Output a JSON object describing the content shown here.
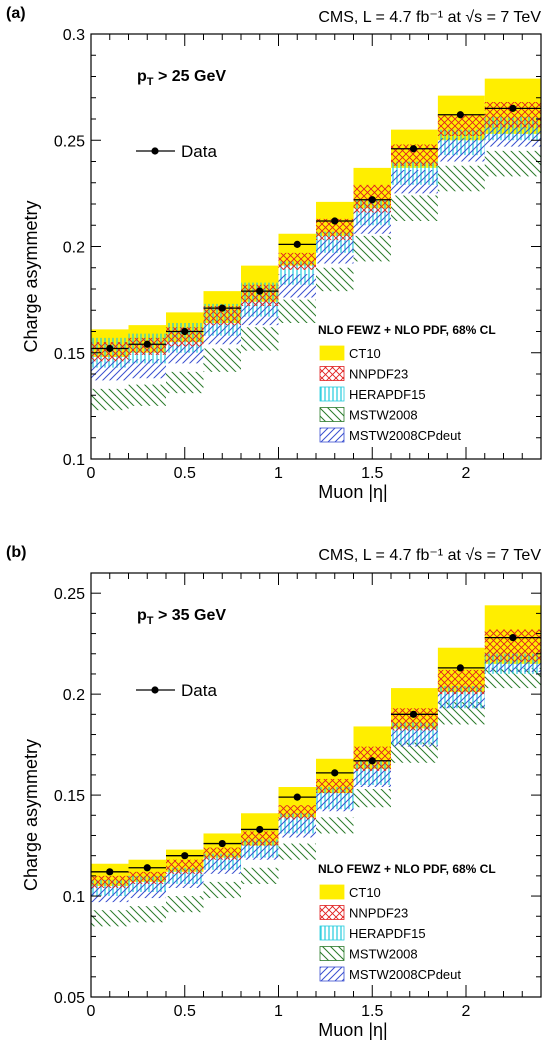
{
  "colors": {
    "ct10": "#ffee00",
    "nnpdf23": "#e02020",
    "herapdf15": "#22ccdd",
    "mstw2008": "#2a7a2a",
    "mstw2008cpdeut": "#3a4fd0",
    "data": "#000000"
  },
  "chart_data": [
    {
      "type": "bar",
      "panel_label": "(a)",
      "header": "CMS,  L = 4.7 fb⁻¹ at √s = 7 TeV",
      "selection": "p_T > 25 GeV",
      "xlabel": "Muon |η|",
      "ylabel": "Charge asymmetry",
      "xlim": [
        0,
        2.4
      ],
      "ylim": [
        0.1,
        0.3
      ],
      "x_ticks": [
        "0",
        "0.5",
        "1",
        "1.5",
        "2"
      ],
      "y_ticks": [
        "0.1",
        "0.15",
        "0.2",
        "0.25",
        "0.3"
      ],
      "legend_title": "NLO FEWZ + NLO PDF, 68% CL",
      "legend_placement": "bottom-right",
      "bin_edges": [
        0,
        0.2,
        0.4,
        0.6,
        0.8,
        1.0,
        1.2,
        1.4,
        1.6,
        1.85,
        2.1,
        2.4
      ],
      "data": {
        "name": "Data",
        "x": [
          0.1,
          0.3,
          0.5,
          0.7,
          0.9,
          1.1,
          1.3,
          1.5,
          1.72,
          1.97,
          2.25
        ],
        "y": [
          0.152,
          0.154,
          0.16,
          0.171,
          0.179,
          0.201,
          0.212,
          0.222,
          0.246,
          0.262,
          0.265
        ]
      },
      "series": [
        {
          "name": "CT10",
          "key": "ct10",
          "pattern": "solid",
          "low": [
            0.148,
            0.15,
            0.155,
            0.164,
            0.174,
            0.191,
            0.205,
            0.218,
            0.237,
            0.25,
            0.253
          ],
          "high": [
            0.161,
            0.163,
            0.169,
            0.179,
            0.191,
            0.206,
            0.221,
            0.237,
            0.255,
            0.271,
            0.279
          ]
        },
        {
          "name": "NNPDF23",
          "key": "nnpdf23",
          "pattern": "cross",
          "low": [
            0.146,
            0.149,
            0.153,
            0.163,
            0.172,
            0.189,
            0.203,
            0.216,
            0.238,
            0.252,
            0.256
          ],
          "high": [
            0.155,
            0.157,
            0.162,
            0.172,
            0.182,
            0.197,
            0.213,
            0.229,
            0.248,
            0.262,
            0.268
          ]
        },
        {
          "name": "HERAPDF15",
          "key": "herapdf15",
          "pattern": "vert",
          "low": [
            0.143,
            0.145,
            0.15,
            0.158,
            0.167,
            0.182,
            0.197,
            0.21,
            0.229,
            0.243,
            0.25
          ],
          "high": [
            0.157,
            0.159,
            0.164,
            0.173,
            0.183,
            0.193,
            0.207,
            0.222,
            0.24,
            0.255,
            0.261
          ]
        },
        {
          "name": "MSTW2008",
          "key": "mstw2008",
          "pattern": "back",
          "low": [
            0.123,
            0.125,
            0.131,
            0.141,
            0.151,
            0.164,
            0.179,
            0.193,
            0.212,
            0.226,
            0.233
          ],
          "high": [
            0.133,
            0.135,
            0.141,
            0.152,
            0.162,
            0.175,
            0.19,
            0.205,
            0.224,
            0.238,
            0.245
          ]
        },
        {
          "name": "MSTW2008CPdeut",
          "key": "mstw2008cpdeut",
          "pattern": "fwd",
          "low": [
            0.137,
            0.138,
            0.145,
            0.154,
            0.163,
            0.176,
            0.192,
            0.206,
            0.225,
            0.24,
            0.247
          ],
          "high": [
            0.146,
            0.147,
            0.154,
            0.163,
            0.174,
            0.187,
            0.203,
            0.217,
            0.236,
            0.251,
            0.258
          ]
        }
      ]
    },
    {
      "type": "bar",
      "panel_label": "(b)",
      "header": "CMS,  L = 4.7 fb⁻¹ at √s = 7 TeV",
      "selection": "p_T > 35 GeV",
      "xlabel": "Muon |η|",
      "ylabel": "Charge asymmetry",
      "xlim": [
        0,
        2.4
      ],
      "ylim": [
        0.05,
        0.26
      ],
      "x_ticks": [
        "0",
        "0.5",
        "1",
        "1.5",
        "2"
      ],
      "y_ticks": [
        "0.05",
        "0.1",
        "0.15",
        "0.2",
        "0.25"
      ],
      "legend_title": "NLO FEWZ + NLO PDF, 68% CL",
      "legend_placement": "bottom-right",
      "bin_edges": [
        0,
        0.2,
        0.4,
        0.6,
        0.8,
        1.0,
        1.2,
        1.4,
        1.6,
        1.85,
        2.1,
        2.4
      ],
      "data": {
        "name": "Data",
        "x": [
          0.1,
          0.3,
          0.5,
          0.7,
          0.9,
          1.1,
          1.3,
          1.5,
          1.72,
          1.97,
          2.25
        ],
        "y": [
          0.112,
          0.114,
          0.12,
          0.126,
          0.133,
          0.149,
          0.161,
          0.167,
          0.19,
          0.213,
          0.228
        ]
      },
      "series": [
        {
          "name": "CT10",
          "key": "ct10",
          "pattern": "solid",
          "low": [
            0.105,
            0.107,
            0.112,
            0.119,
            0.125,
            0.139,
            0.151,
            0.163,
            0.183,
            0.201,
            0.215
          ],
          "high": [
            0.116,
            0.118,
            0.123,
            0.131,
            0.141,
            0.154,
            0.168,
            0.184,
            0.203,
            0.223,
            0.244
          ]
        },
        {
          "name": "NNPDF23",
          "key": "nnpdf23",
          "pattern": "cross",
          "low": [
            0.104,
            0.106,
            0.111,
            0.118,
            0.125,
            0.138,
            0.151,
            0.162,
            0.182,
            0.2,
            0.216
          ],
          "high": [
            0.11,
            0.112,
            0.118,
            0.124,
            0.132,
            0.145,
            0.158,
            0.174,
            0.193,
            0.212,
            0.232
          ]
        },
        {
          "name": "HERAPDF15",
          "key": "herapdf15",
          "pattern": "vert",
          "low": [
            0.1,
            0.102,
            0.106,
            0.113,
            0.119,
            0.131,
            0.143,
            0.155,
            0.175,
            0.193,
            0.21
          ],
          "high": [
            0.108,
            0.11,
            0.114,
            0.121,
            0.128,
            0.141,
            0.154,
            0.167,
            0.186,
            0.204,
            0.22
          ]
        },
        {
          "name": "MSTW2008",
          "key": "mstw2008",
          "pattern": "back",
          "low": [
            0.085,
            0.087,
            0.092,
            0.099,
            0.106,
            0.118,
            0.131,
            0.144,
            0.166,
            0.185,
            0.203
          ],
          "high": [
            0.093,
            0.095,
            0.1,
            0.107,
            0.114,
            0.126,
            0.139,
            0.153,
            0.176,
            0.196,
            0.213
          ]
        },
        {
          "name": "MSTW2008CPdeut",
          "key": "mstw2008cpdeut",
          "pattern": "fwd",
          "low": [
            0.097,
            0.099,
            0.104,
            0.111,
            0.118,
            0.129,
            0.142,
            0.154,
            0.174,
            0.193,
            0.211
          ],
          "high": [
            0.105,
            0.107,
            0.112,
            0.119,
            0.127,
            0.139,
            0.152,
            0.165,
            0.185,
            0.204,
            0.221
          ]
        }
      ]
    }
  ]
}
